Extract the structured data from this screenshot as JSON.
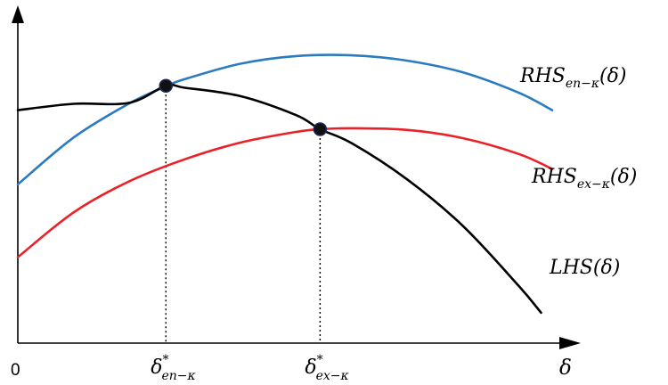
{
  "chart_data": {
    "type": "line",
    "title": "",
    "xlabel": "δ",
    "ylabel": "",
    "x_range": [
      0,
      1
    ],
    "y_range": [
      0,
      1
    ],
    "origin_label": "0",
    "grid": false,
    "legend": "inline labels at right end of each curve",
    "series": [
      {
        "name_main": "RHS",
        "name_sub": "en−κ",
        "name_tail": "(δ)",
        "color": "#2a7bbf",
        "x": [
          0.0,
          0.1,
          0.2,
          0.266,
          0.3,
          0.4,
          0.5,
          0.6,
          0.7,
          0.8,
          0.9,
          0.96
        ],
        "y": [
          0.475,
          0.615,
          0.717,
          0.768,
          0.79,
          0.836,
          0.859,
          0.861,
          0.845,
          0.81,
          0.749,
          0.697
        ]
      },
      {
        "name_main": "RHS",
        "name_sub": "ex−κ",
        "name_tail": "(δ)",
        "color": "#ec2127",
        "x": [
          0.0,
          0.1,
          0.2,
          0.3,
          0.4,
          0.5,
          0.543,
          0.6,
          0.7,
          0.8,
          0.9,
          0.96
        ],
        "y": [
          0.257,
          0.391,
          0.484,
          0.55,
          0.6,
          0.632,
          0.64,
          0.643,
          0.638,
          0.613,
          0.566,
          0.521
        ]
      },
      {
        "name_main": "LHS",
        "name_sub": "",
        "name_tail": "(δ)",
        "color": "#000000",
        "x": [
          0.0,
          0.1,
          0.2,
          0.266,
          0.3,
          0.4,
          0.5,
          0.543,
          0.6,
          0.7,
          0.8,
          0.9,
          0.94
        ],
        "y": [
          0.697,
          0.716,
          0.719,
          0.77,
          0.764,
          0.739,
          0.682,
          0.64,
          0.598,
          0.489,
          0.35,
          0.171,
          0.091
        ]
      }
    ],
    "intersections": [
      {
        "x": 0.266,
        "y": 0.77,
        "label_main": "δ",
        "label_sup": "*",
        "label_sub": "en−κ"
      },
      {
        "x": 0.543,
        "y": 0.64,
        "label_main": "δ",
        "label_sup": "*",
        "label_sub": "ex−κ"
      }
    ]
  }
}
